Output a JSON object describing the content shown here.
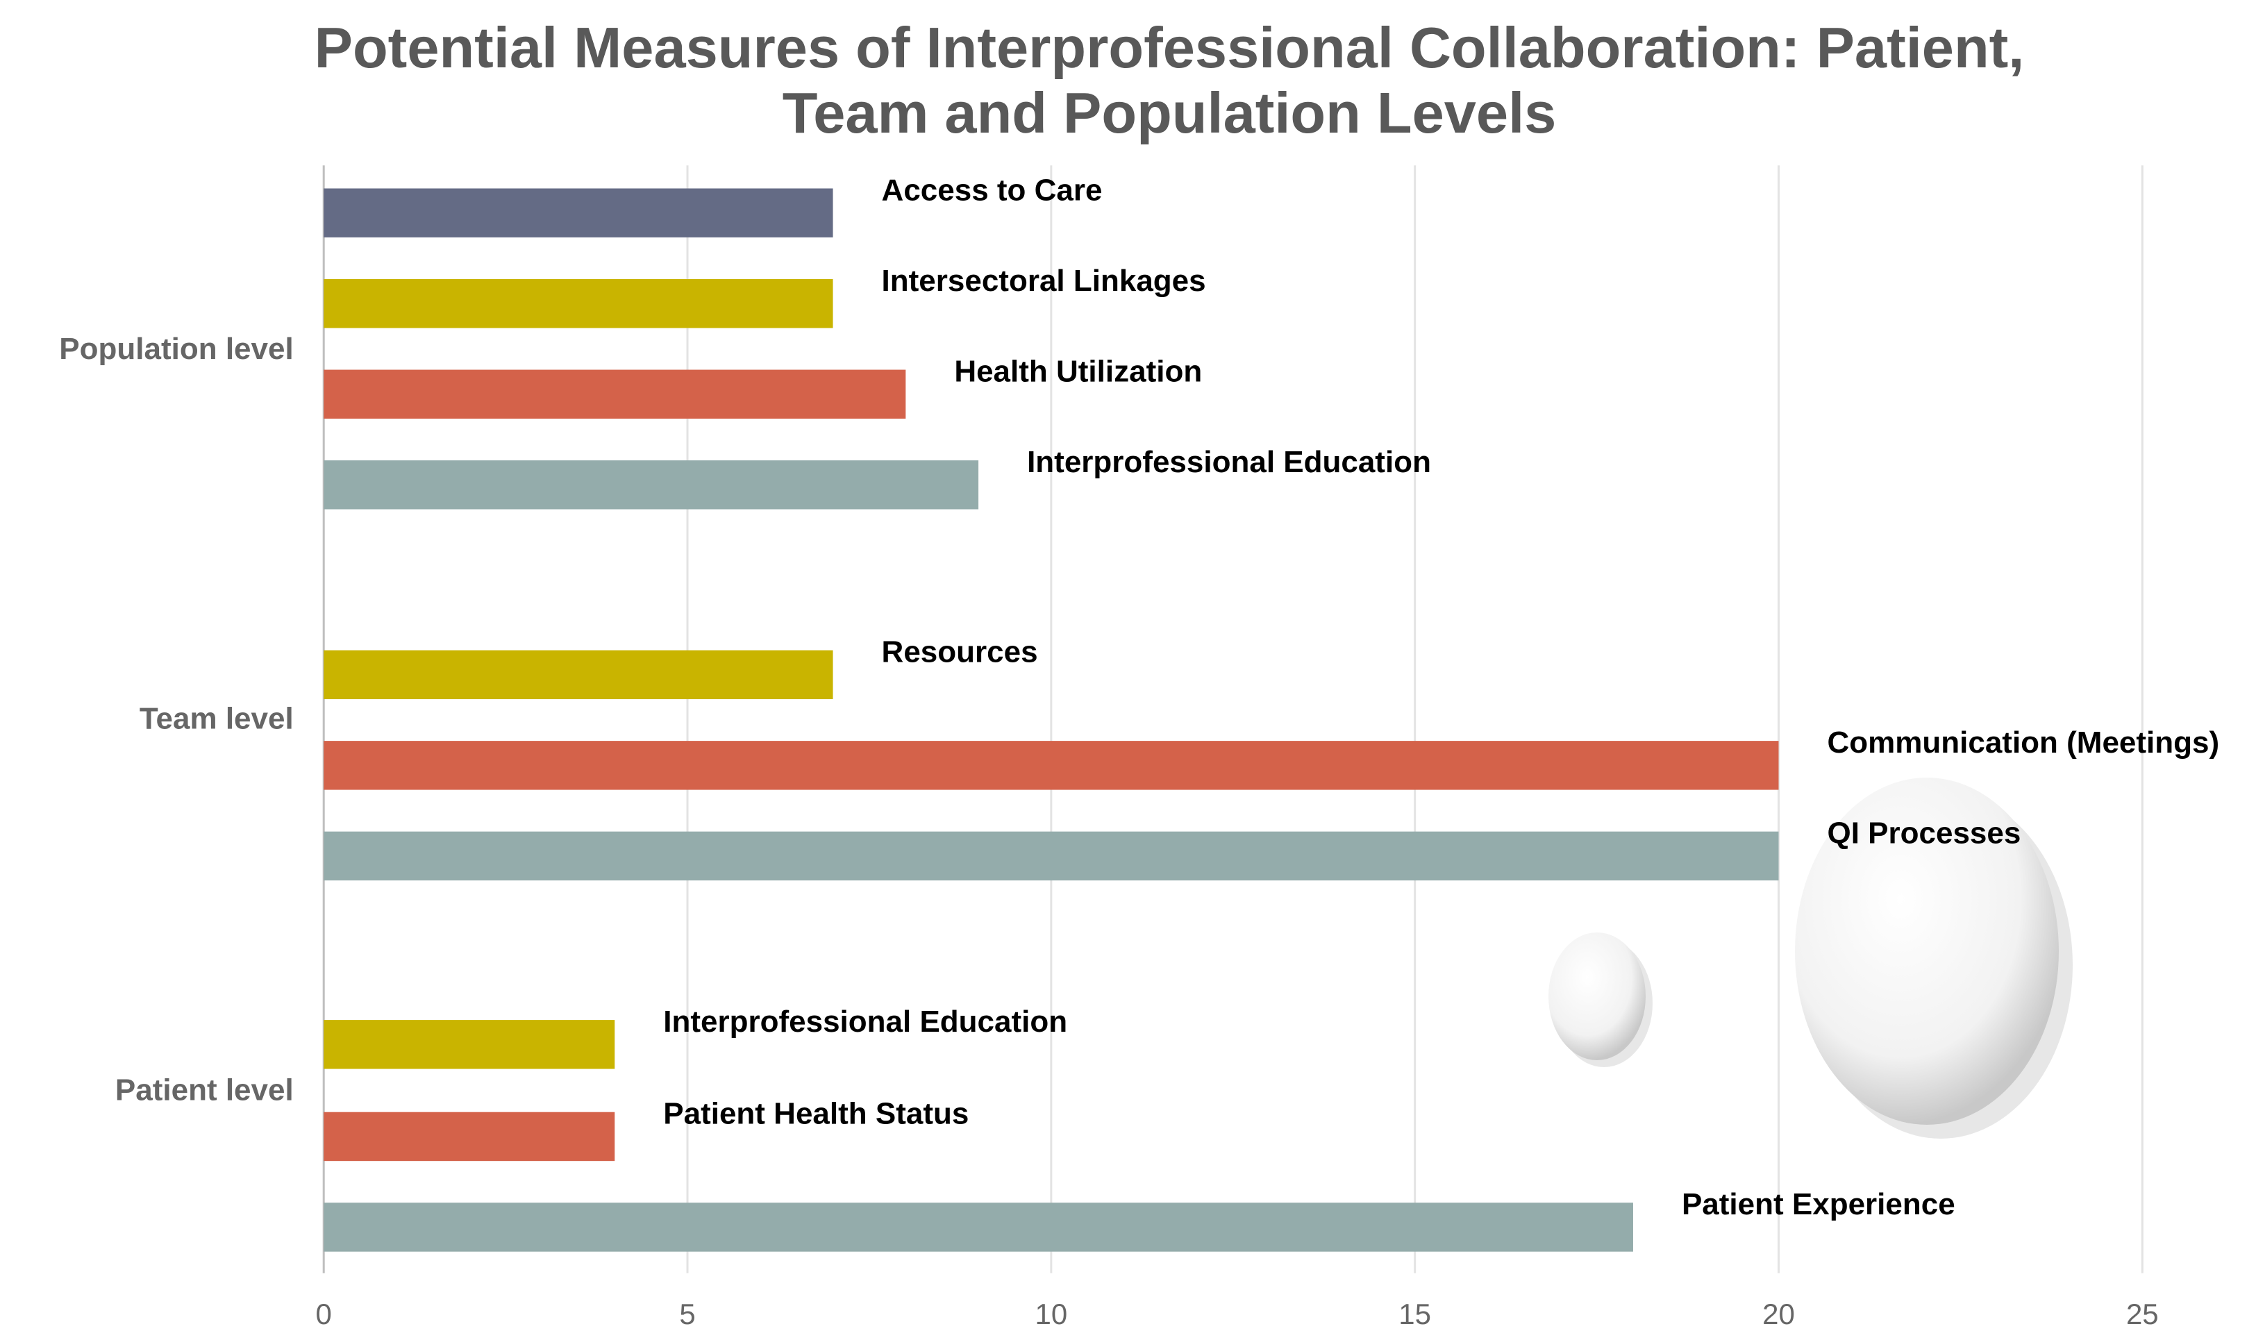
{
  "chart_data": {
    "type": "bar",
    "orientation": "horizontal",
    "title": "Potential Measures of Interprofessional Collaboration: Patient, Team and Population Levels",
    "groups": [
      {
        "name": "Population level",
        "bars": [
          {
            "label": "Access to Care",
            "value": 7,
            "color": "#646b85"
          },
          {
            "label": "Intersectoral Linkages",
            "value": 7,
            "color": "#c9b400"
          },
          {
            "label": "Health Utilization",
            "value": 8,
            "color": "#d4624a"
          },
          {
            "label": "Interprofessional Education",
            "value": 9,
            "color": "#94acab"
          }
        ]
      },
      {
        "name": "Team level",
        "bars": [
          {
            "label": "Resources",
            "value": 7,
            "color": "#c9b400"
          },
          {
            "label": "Communication (Meetings)",
            "value": 20,
            "color": "#d4624a"
          },
          {
            "label": "QI Processes",
            "value": 20,
            "color": "#94acab"
          }
        ]
      },
      {
        "name": "Patient level",
        "bars": [
          {
            "label": "Interprofessional Education",
            "value": 4,
            "color": "#c9b400"
          },
          {
            "label": "Patient Health Status",
            "value": 4,
            "color": "#d4624a"
          },
          {
            "label": "Patient Experience",
            "value": 18,
            "color": "#94acab"
          }
        ]
      }
    ],
    "xlim": [
      0,
      25
    ],
    "xticks": [
      0,
      5,
      10,
      15,
      20,
      25
    ],
    "grid": true
  }
}
